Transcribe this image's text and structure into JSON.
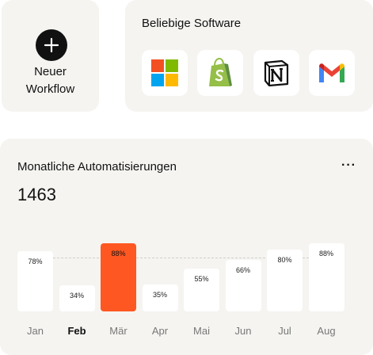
{
  "new_workflow": {
    "label": "Neuer\nWorkflow"
  },
  "software": {
    "title": "Beliebige Software",
    "apps": [
      "microsoft-icon",
      "shopify-icon",
      "notion-icon",
      "gmail-icon"
    ]
  },
  "stats": {
    "title": "Monatliche Automatisierungen",
    "more_label": "···",
    "total": "1463",
    "accent": "#ff5722",
    "chart_data": {
      "type": "bar",
      "categories": [
        "Jan",
        "Feb",
        "Mär",
        "Apr",
        "Mai",
        "Jun",
        "Jul",
        "Aug"
      ],
      "values": [
        78,
        34,
        88,
        35,
        55,
        66,
        80,
        88
      ],
      "labels": [
        "78%",
        "34%",
        "88%",
        "35%",
        "55%",
        "66%",
        "80%",
        "88%"
      ],
      "highlight_index": 2,
      "bold_category_index": 1,
      "ylim": [
        0,
        100
      ]
    }
  }
}
